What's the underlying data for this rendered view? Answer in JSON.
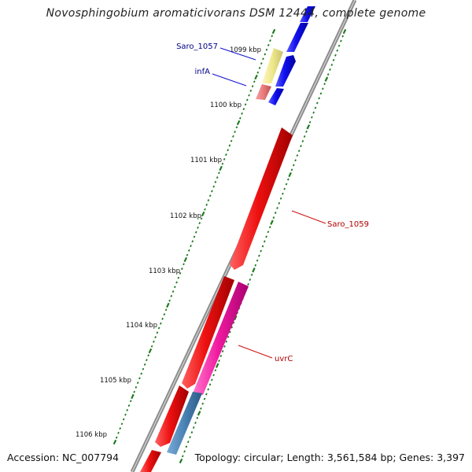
{
  "title": "Novosphingobium aromaticivorans DSM 12444, complete genome",
  "footer": {
    "accession": "Accession: NC_007794",
    "summary": "Topology: circular; Length: 3,561,584 bp; Genes: 3,397"
  },
  "colors": {
    "backbone": "#888888",
    "forward_gene": "#1010ee",
    "reverse_gene": "#ee1010",
    "rna_gene": "#eee88a",
    "trna_gene": "#e87a7a",
    "uvrC": "#f01aa0",
    "steel_gene": "#4a82b4",
    "ruler": "#1e7a1e",
    "forward_label": "#00008b",
    "reverse_label": "#b00000"
  },
  "ruler": {
    "ticks": [
      "1099 kbp",
      "1100 kbp",
      "1101 kbp",
      "1102 kbp",
      "1103 kbp",
      "1104 kbp",
      "1105 kbp",
      "1106 kbp"
    ]
  },
  "genes": [
    {
      "label": "Saro_1057",
      "strand": "forward",
      "kind": "rna"
    },
    {
      "label": "infA",
      "strand": "forward",
      "kind": "trna"
    },
    {
      "label": "Saro_1059",
      "strand": "reverse",
      "kind": "cds"
    },
    {
      "label": "uvrC",
      "strand": "reverse",
      "kind": "uvrC"
    }
  ]
}
